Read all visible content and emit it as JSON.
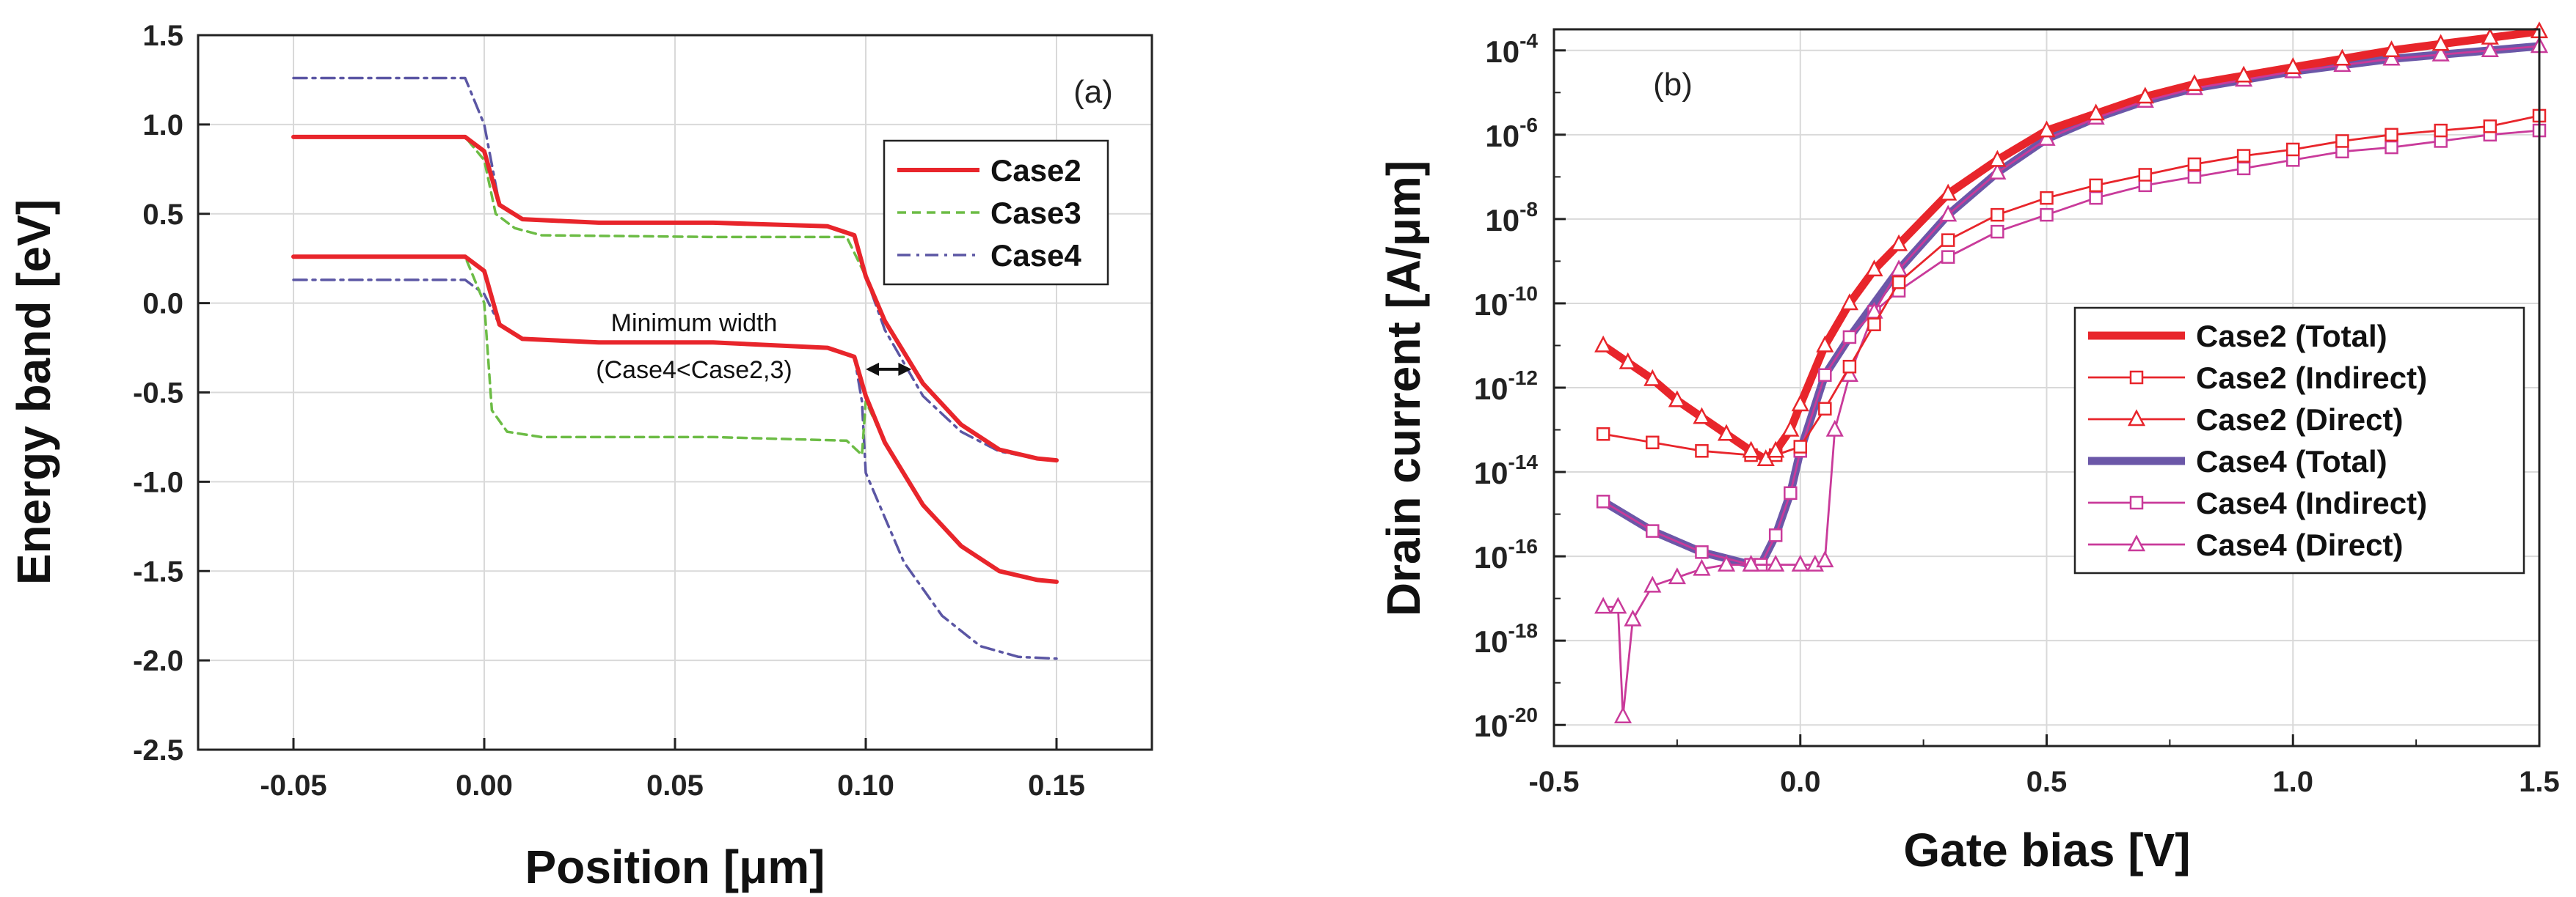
{
  "chart_data": [
    {
      "type": "line",
      "panel_label": "(a)",
      "xlabel": "Position [μm]",
      "ylabel": "Energy band [eV]",
      "xlim": [
        -0.075,
        0.175
      ],
      "ylim": [
        -2.5,
        1.5
      ],
      "xticks": [
        -0.05,
        0.0,
        0.05,
        0.1,
        0.15
      ],
      "xtick_labels": [
        "-0.05",
        "0.00",
        "0.05",
        "0.10",
        "0.15"
      ],
      "yticks": [
        1.5,
        1.0,
        0.5,
        0.0,
        -0.5,
        -1.0,
        -1.5,
        -2.0,
        -2.5
      ],
      "ytick_labels": [
        "1.5",
        "1.0",
        "0.5",
        "0.0",
        "-0.5",
        "-1.0",
        "-1.5",
        "-2.0",
        "-2.5"
      ],
      "grid": true,
      "legend": {
        "position": "top-right",
        "entries": [
          "Case2",
          "Case3",
          "Case4"
        ]
      },
      "annotation": {
        "line1": "Minimum width",
        "line2": "(Case4<Case2,3)",
        "arrow_x": [
          0.1,
          0.112
        ],
        "arrow_y": -0.37
      },
      "series": [
        {
          "name": "Case2",
          "band": "conduction",
          "color": "#e8252b",
          "x": [
            -0.05,
            -0.005,
            0.0,
            0.004,
            0.01,
            0.03,
            0.06,
            0.09,
            0.097,
            0.1,
            0.105,
            0.115,
            0.125,
            0.135,
            0.145,
            0.15
          ],
          "y": [
            0.93,
            0.93,
            0.85,
            0.55,
            0.47,
            0.45,
            0.45,
            0.43,
            0.38,
            0.15,
            -0.1,
            -0.45,
            -0.68,
            -0.82,
            -0.87,
            -0.88
          ]
        },
        {
          "name": "Case2",
          "band": "valence",
          "color": "#e8252b",
          "x": [
            -0.05,
            -0.005,
            0.0,
            0.004,
            0.01,
            0.03,
            0.06,
            0.09,
            0.097,
            0.1,
            0.105,
            0.115,
            0.125,
            0.135,
            0.145,
            0.15
          ],
          "y": [
            0.26,
            0.26,
            0.18,
            -0.12,
            -0.2,
            -0.22,
            -0.22,
            -0.25,
            -0.3,
            -0.52,
            -0.78,
            -1.13,
            -1.36,
            -1.5,
            -1.55,
            -1.56
          ]
        },
        {
          "name": "Case3",
          "band": "conduction",
          "color": "#6cbc45",
          "x": [
            -0.05,
            -0.005,
            0.0,
            0.003,
            0.008,
            0.015,
            0.06,
            0.095,
            0.1,
            0.105,
            0.115,
            0.125,
            0.135,
            0.145,
            0.15
          ],
          "y": [
            0.93,
            0.93,
            0.8,
            0.5,
            0.42,
            0.38,
            0.37,
            0.37,
            0.15,
            -0.1,
            -0.45,
            -0.68,
            -0.82,
            -0.87,
            -0.88
          ]
        },
        {
          "name": "Case3",
          "band": "valence",
          "color": "#6cbc45",
          "x": [
            -0.05,
            -0.005,
            0.0,
            0.002,
            0.006,
            0.015,
            0.06,
            0.095,
            0.099,
            0.1,
            0.105,
            0.115,
            0.125,
            0.135,
            0.145,
            0.15
          ],
          "y": [
            0.26,
            0.26,
            0.0,
            -0.6,
            -0.72,
            -0.75,
            -0.75,
            -0.77,
            -0.85,
            -0.55,
            -0.78,
            -1.13,
            -1.36,
            -1.5,
            -1.55,
            -1.56
          ]
        },
        {
          "name": "Case4",
          "band": "conduction",
          "color": "#5b56a4",
          "x": [
            -0.05,
            -0.005,
            0.0,
            0.004,
            0.01,
            0.03,
            0.06,
            0.09,
            0.097,
            0.1,
            0.105,
            0.115,
            0.125,
            0.135,
            0.145,
            0.15
          ],
          "y": [
            1.26,
            1.26,
            1.0,
            0.55,
            0.47,
            0.45,
            0.45,
            0.43,
            0.38,
            0.15,
            -0.15,
            -0.52,
            -0.72,
            -0.83,
            -0.87,
            -0.88
          ]
        },
        {
          "name": "Case4",
          "band": "valence",
          "color": "#5b56a4",
          "x": [
            -0.05,
            -0.005,
            0.0,
            0.004,
            0.01,
            0.03,
            0.06,
            0.09,
            0.097,
            0.099,
            0.1,
            0.103,
            0.11,
            0.12,
            0.13,
            0.14,
            0.15
          ],
          "y": [
            0.13,
            0.13,
            0.05,
            -0.12,
            -0.2,
            -0.22,
            -0.22,
            -0.25,
            -0.3,
            -0.55,
            -0.95,
            -1.1,
            -1.45,
            -1.75,
            -1.92,
            -1.98,
            -1.99
          ]
        }
      ]
    },
    {
      "type": "line",
      "panel_label": "(b)",
      "xlabel": "Gate bias [V]",
      "ylabel": "Drain current [A/μm]",
      "yscale": "log",
      "xlim": [
        -0.5,
        1.5
      ],
      "ylim_log10": [
        -20.5,
        -3.5
      ],
      "xticks": [
        -0.5,
        0.0,
        0.5,
        1.0,
        1.5
      ],
      "xtick_labels": [
        "-0.5",
        "0.0",
        "0.5",
        "1.0",
        "1.5"
      ],
      "ytick_exponents": [
        -4,
        -6,
        -8,
        -10,
        -12,
        -14,
        -16,
        -18,
        -20
      ],
      "ytick_exponent_labels": [
        "-4",
        "-6",
        "-8",
        "-10",
        "-12",
        "-14",
        "-16",
        "-18",
        "-20"
      ],
      "ytick_base": "10",
      "grid": true,
      "legend": {
        "position": "lower-right",
        "entries": [
          "Case2 (Total)",
          "Case2 (Indirect)",
          "Case2 (Direct)",
          "Case4 (Total)",
          "Case4 (Indirect)",
          "Case4 (Direct)"
        ]
      },
      "series": [
        {
          "name": "Case2 (Total)",
          "color": "#e8252b",
          "style": "thick",
          "marker": "none",
          "x": [
            -0.4,
            -0.35,
            -0.3,
            -0.25,
            -0.2,
            -0.15,
            -0.1,
            -0.07,
            -0.05,
            -0.02,
            0.0,
            0.05,
            0.1,
            0.15,
            0.2,
            0.3,
            0.4,
            0.5,
            0.6,
            0.7,
            0.8,
            0.9,
            1.0,
            1.1,
            1.2,
            1.3,
            1.4,
            1.5
          ],
          "y": [
            -11.0,
            -11.4,
            -11.8,
            -12.3,
            -12.7,
            -13.1,
            -13.5,
            -13.7,
            -13.5,
            -13.0,
            -12.4,
            -11.0,
            -10.0,
            -9.2,
            -8.6,
            -7.4,
            -6.6,
            -5.9,
            -5.5,
            -5.1,
            -4.8,
            -4.6,
            -4.4,
            -4.2,
            -4.0,
            -3.85,
            -3.7,
            -3.55
          ]
        },
        {
          "name": "Case2 (Indirect)",
          "color": "#e8252b",
          "style": "thin",
          "marker": "square",
          "x": [
            -0.4,
            -0.3,
            -0.2,
            -0.1,
            -0.05,
            0.0,
            0.05,
            0.1,
            0.15,
            0.2,
            0.3,
            0.4,
            0.5,
            0.6,
            0.7,
            0.8,
            0.9,
            1.0,
            1.1,
            1.2,
            1.3,
            1.4,
            1.5
          ],
          "y": [
            -13.1,
            -13.3,
            -13.5,
            -13.6,
            -13.6,
            -13.4,
            -12.5,
            -11.5,
            -10.5,
            -9.5,
            -8.5,
            -7.9,
            -7.5,
            -7.2,
            -6.95,
            -6.7,
            -6.5,
            -6.35,
            -6.15,
            -6.0,
            -5.9,
            -5.8,
            -5.55
          ]
        },
        {
          "name": "Case2 (Direct)",
          "color": "#e8252b",
          "style": "thin",
          "marker": "triangle",
          "x": [
            -0.4,
            -0.35,
            -0.3,
            -0.25,
            -0.2,
            -0.15,
            -0.1,
            -0.07,
            -0.05,
            -0.02,
            0.0,
            0.05,
            0.1,
            0.15,
            0.2,
            0.3,
            0.4,
            0.5,
            0.6,
            0.7,
            0.8,
            0.9,
            1.0,
            1.1,
            1.2,
            1.3,
            1.4,
            1.5
          ],
          "y": [
            -11.0,
            -11.4,
            -11.8,
            -12.3,
            -12.7,
            -13.1,
            -13.5,
            -13.7,
            -13.5,
            -13.0,
            -12.4,
            -11.0,
            -10.0,
            -9.2,
            -8.6,
            -7.4,
            -6.6,
            -5.9,
            -5.5,
            -5.1,
            -4.8,
            -4.6,
            -4.4,
            -4.2,
            -4.0,
            -3.85,
            -3.7,
            -3.55
          ]
        },
        {
          "name": "Case4 (Total)",
          "color": "#6b57a8",
          "style": "thick",
          "marker": "none",
          "x": [
            -0.4,
            -0.3,
            -0.2,
            -0.1,
            -0.08,
            -0.05,
            -0.02,
            0.0,
            0.05,
            0.1,
            0.15,
            0.2,
            0.3,
            0.4,
            0.5,
            0.6,
            0.7,
            0.8,
            0.9,
            1.0,
            1.1,
            1.2,
            1.3,
            1.4,
            1.5
          ],
          "y": [
            -14.7,
            -15.4,
            -15.9,
            -16.2,
            -16.2,
            -15.5,
            -14.5,
            -13.5,
            -11.7,
            -10.8,
            -10.0,
            -9.2,
            -7.9,
            -6.9,
            -6.1,
            -5.6,
            -5.2,
            -4.9,
            -4.7,
            -4.5,
            -4.35,
            -4.2,
            -4.1,
            -4.0,
            -3.9
          ]
        },
        {
          "name": "Case4 (Indirect)",
          "color": "#c93a9a",
          "style": "thin",
          "marker": "square",
          "x": [
            -0.4,
            -0.3,
            -0.2,
            -0.1,
            -0.08,
            -0.05,
            -0.02,
            0.0,
            0.05,
            0.1,
            0.15,
            0.2,
            0.3,
            0.4,
            0.5,
            0.6,
            0.7,
            0.8,
            0.9,
            1.0,
            1.1,
            1.2,
            1.3,
            1.4,
            1.5
          ],
          "y": [
            -14.7,
            -15.4,
            -15.9,
            -16.2,
            -16.2,
            -15.5,
            -14.5,
            -13.5,
            -11.7,
            -10.8,
            -10.2,
            -9.7,
            -8.9,
            -8.3,
            -7.9,
            -7.5,
            -7.2,
            -7.0,
            -6.8,
            -6.6,
            -6.4,
            -6.3,
            -6.15,
            -6.0,
            -5.9
          ]
        },
        {
          "name": "Case4 (Direct)",
          "color": "#c93a9a",
          "style": "thin",
          "marker": "triangle",
          "x": [
            -0.4,
            -0.37,
            -0.36,
            -0.34,
            -0.3,
            -0.25,
            -0.2,
            -0.15,
            -0.1,
            -0.05,
            0.0,
            0.03,
            0.05,
            0.07,
            0.1,
            0.15,
            0.2,
            0.3,
            0.4,
            0.5,
            0.6,
            0.7,
            0.8,
            0.9,
            1.0,
            1.1,
            1.2,
            1.3,
            1.4,
            1.5
          ],
          "y": [
            -17.2,
            -17.2,
            -19.8,
            -17.5,
            -16.7,
            -16.5,
            -16.3,
            -16.2,
            -16.2,
            -16.2,
            -16.2,
            -16.2,
            -16.1,
            -13.0,
            -11.7,
            -10.2,
            -9.2,
            -7.9,
            -6.9,
            -6.1,
            -5.6,
            -5.2,
            -4.9,
            -4.7,
            -4.5,
            -4.35,
            -4.2,
            -4.1,
            -4.0,
            -3.9
          ]
        }
      ]
    }
  ]
}
